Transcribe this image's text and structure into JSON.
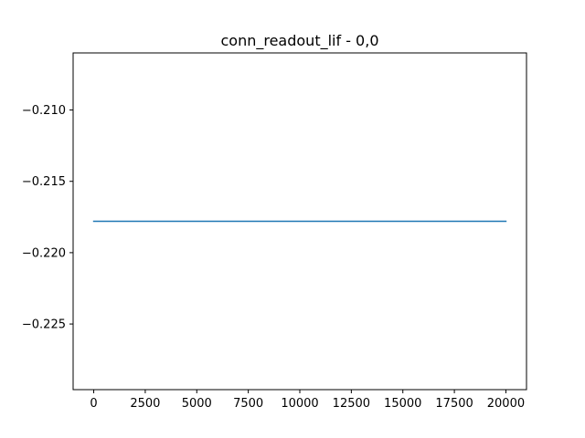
{
  "chart_data": {
    "type": "line",
    "title": "conn_readout_lif - 0,0",
    "xlabel": "",
    "ylabel": "",
    "xlim": [
      -1000,
      21000
    ],
    "ylim": [
      -0.2296,
      -0.206
    ],
    "x_ticks": [
      0,
      2500,
      5000,
      7500,
      10000,
      12500,
      15000,
      17500,
      20000
    ],
    "x_tick_labels": [
      "0",
      "2500",
      "5000",
      "7500",
      "10000",
      "12500",
      "15000",
      "17500",
      "20000"
    ],
    "y_ticks": [
      -0.21,
      -0.215,
      -0.22,
      -0.225
    ],
    "y_tick_labels": [
      "−0.210",
      "−0.215",
      "−0.220",
      "−0.225"
    ],
    "grid": false,
    "series": [
      {
        "x": [
          0,
          20000
        ],
        "y": [
          -0.2178,
          -0.2178
        ],
        "color": "#1f77b4"
      }
    ]
  }
}
